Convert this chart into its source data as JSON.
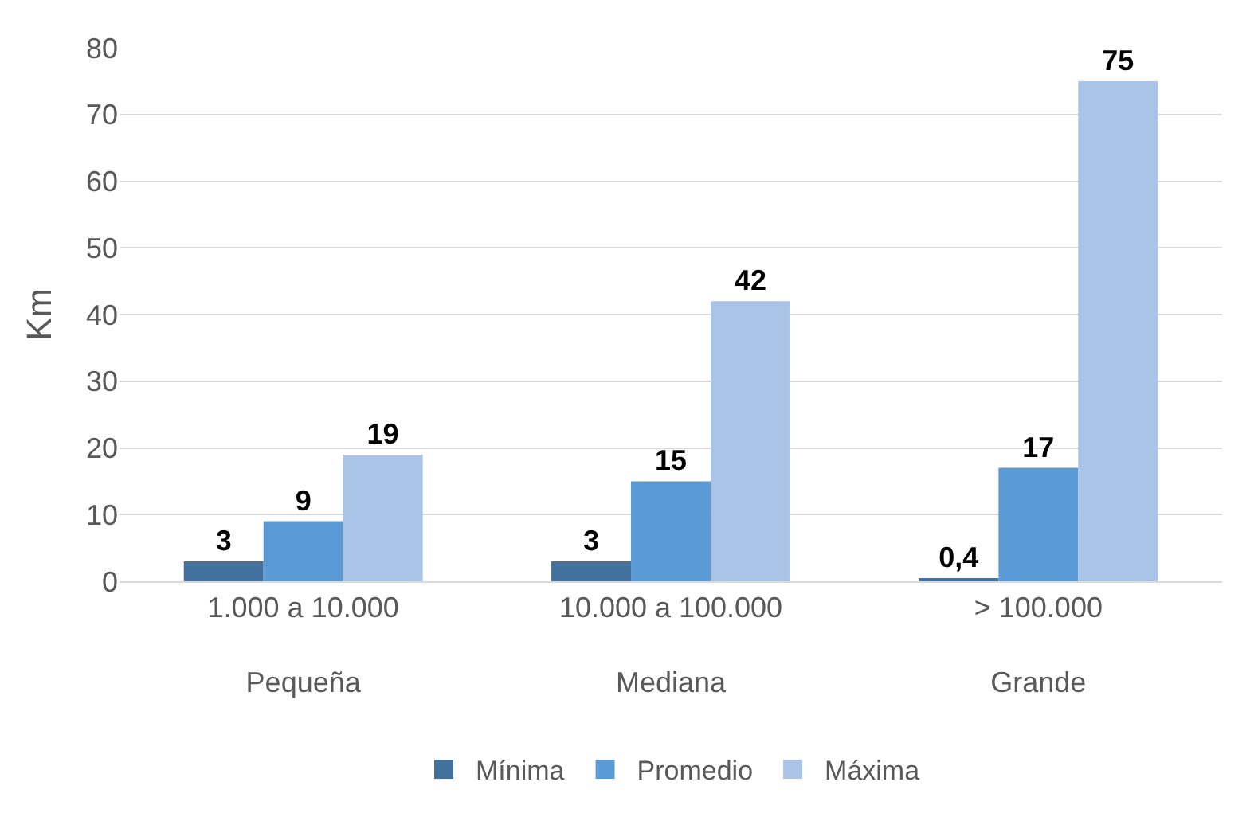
{
  "chart_data": {
    "type": "bar",
    "ylabel": "Km",
    "categories": [
      "1.000 a 10.000\nPequeña",
      "10.000 a 100.000\nMediana",
      "> 100.000\nGrande"
    ],
    "series": [
      {
        "name": "Mínima",
        "color": "#41719c",
        "values": [
          3,
          3,
          0.4
        ],
        "value_labels": [
          "3",
          "3",
          "0,4"
        ]
      },
      {
        "name": "Promedio",
        "color": "#5b9bd5",
        "values": [
          9,
          15,
          17
        ],
        "value_labels": [
          "9",
          "15",
          "17"
        ]
      },
      {
        "name": "Máxima",
        "color": "#a9c4e6",
        "values": [
          19,
          42,
          75
        ],
        "value_labels": [
          "19",
          "42",
          "75"
        ]
      }
    ],
    "ylim": [
      0,
      80
    ],
    "yticks": [
      0,
      10,
      20,
      30,
      40,
      50,
      60,
      70,
      80
    ],
    "grid": "y",
    "legend": "bottom"
  }
}
